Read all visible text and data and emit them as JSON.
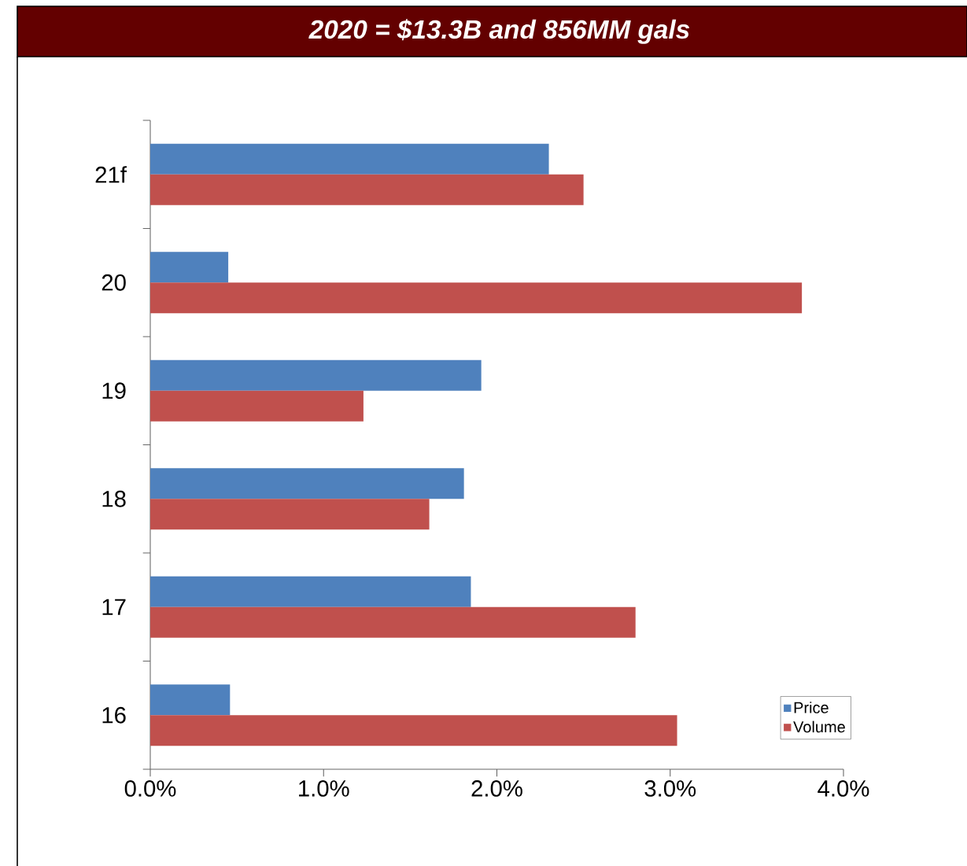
{
  "chart_data": {
    "type": "bar",
    "orientation": "horizontal",
    "title": "2020 = $13.3B and 856MM gals",
    "categories": [
      "21f",
      "20",
      "19",
      "18",
      "17",
      "16"
    ],
    "series": [
      {
        "name": "Price",
        "color": "#4f81bd",
        "values": [
          2.3,
          0.45,
          1.91,
          1.81,
          1.85,
          0.46
        ]
      },
      {
        "name": "Volume",
        "color": "#c0504d",
        "values": [
          2.5,
          3.76,
          1.23,
          1.61,
          2.8,
          3.04
        ]
      }
    ],
    "xlim": [
      0,
      4
    ],
    "xticks": [
      {
        "value": 0,
        "label": "0.0%"
      },
      {
        "value": 1,
        "label": "1.0%"
      },
      {
        "value": 2,
        "label": "2.0%"
      },
      {
        "value": 3,
        "label": "3.0%"
      },
      {
        "value": 4,
        "label": "4.0%"
      }
    ],
    "legend": "bottom right"
  }
}
